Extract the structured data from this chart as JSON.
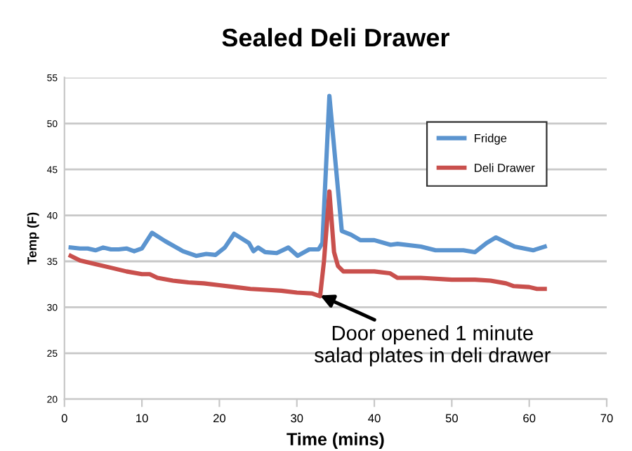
{
  "chart_data": {
    "type": "line",
    "title": "Sealed Deli Drawer",
    "xlabel": "Time (mins)",
    "ylabel": "Temp (F)",
    "xlim": [
      0,
      70
    ],
    "xticks": [
      0,
      10,
      20,
      30,
      40,
      50,
      60,
      70
    ],
    "ylim": [
      20,
      55
    ],
    "yticks": [
      20,
      25,
      30,
      35,
      40,
      45,
      50,
      55
    ],
    "grid": "y",
    "legend": "top right",
    "series": [
      {
        "name": "Fridge",
        "color": "#5b94cf",
        "x": [
          0.8,
          2,
          3,
          4,
          5,
          6,
          7,
          8,
          9,
          10,
          11.3,
          13,
          15.3,
          17,
          18.3,
          19.5,
          20.7,
          21.9,
          23.8,
          24.4,
          25,
          25.9,
          27.4,
          28.9,
          30.1,
          31.6,
          32.8,
          33.3,
          34.2,
          35.8,
          37,
          38.2,
          40,
          42.1,
          43,
          46,
          47.9,
          51.5,
          53,
          54.5,
          55.7,
          58.1,
          60.5,
          62
        ],
        "values": [
          36.5,
          36.4,
          36.4,
          36.2,
          36.5,
          36.3,
          36.3,
          36.4,
          36.1,
          36.4,
          38.1,
          37.2,
          36.1,
          35.6,
          35.8,
          35.7,
          36.5,
          38.0,
          37.0,
          36.1,
          36.5,
          36.0,
          35.9,
          36.5,
          35.6,
          36.3,
          36.3,
          37.0,
          53.0,
          38.3,
          37.9,
          37.3,
          37.3,
          36.8,
          36.9,
          36.6,
          36.2,
          36.2,
          36.0,
          37.0,
          37.6,
          36.6,
          36.2,
          36.6
        ]
      },
      {
        "name": "Deli Drawer",
        "color": "#c9504d",
        "x": [
          0.8,
          2,
          4,
          6,
          8,
          10,
          11,
          12,
          14,
          16,
          18,
          20,
          22,
          24,
          26,
          28,
          30,
          32,
          33,
          33.5,
          34.2,
          34.8,
          35.3,
          36,
          40,
          42,
          43,
          46,
          50,
          53,
          55,
          57,
          58,
          60,
          61,
          62
        ],
        "values": [
          35.6,
          35.1,
          34.7,
          34.3,
          33.9,
          33.6,
          33.6,
          33.2,
          32.9,
          32.7,
          32.6,
          32.4,
          32.2,
          32.0,
          31.9,
          31.8,
          31.6,
          31.5,
          31.2,
          35.0,
          42.6,
          36.0,
          34.5,
          33.9,
          33.9,
          33.7,
          33.2,
          33.2,
          33.0,
          33.0,
          32.9,
          32.6,
          32.3,
          32.2,
          32.0,
          32.0
        ]
      }
    ],
    "annotations": [
      {
        "text": "Door opened 1 minute\nsalad plates in deli drawer",
        "x": 33,
        "y": 31.3
      }
    ]
  }
}
